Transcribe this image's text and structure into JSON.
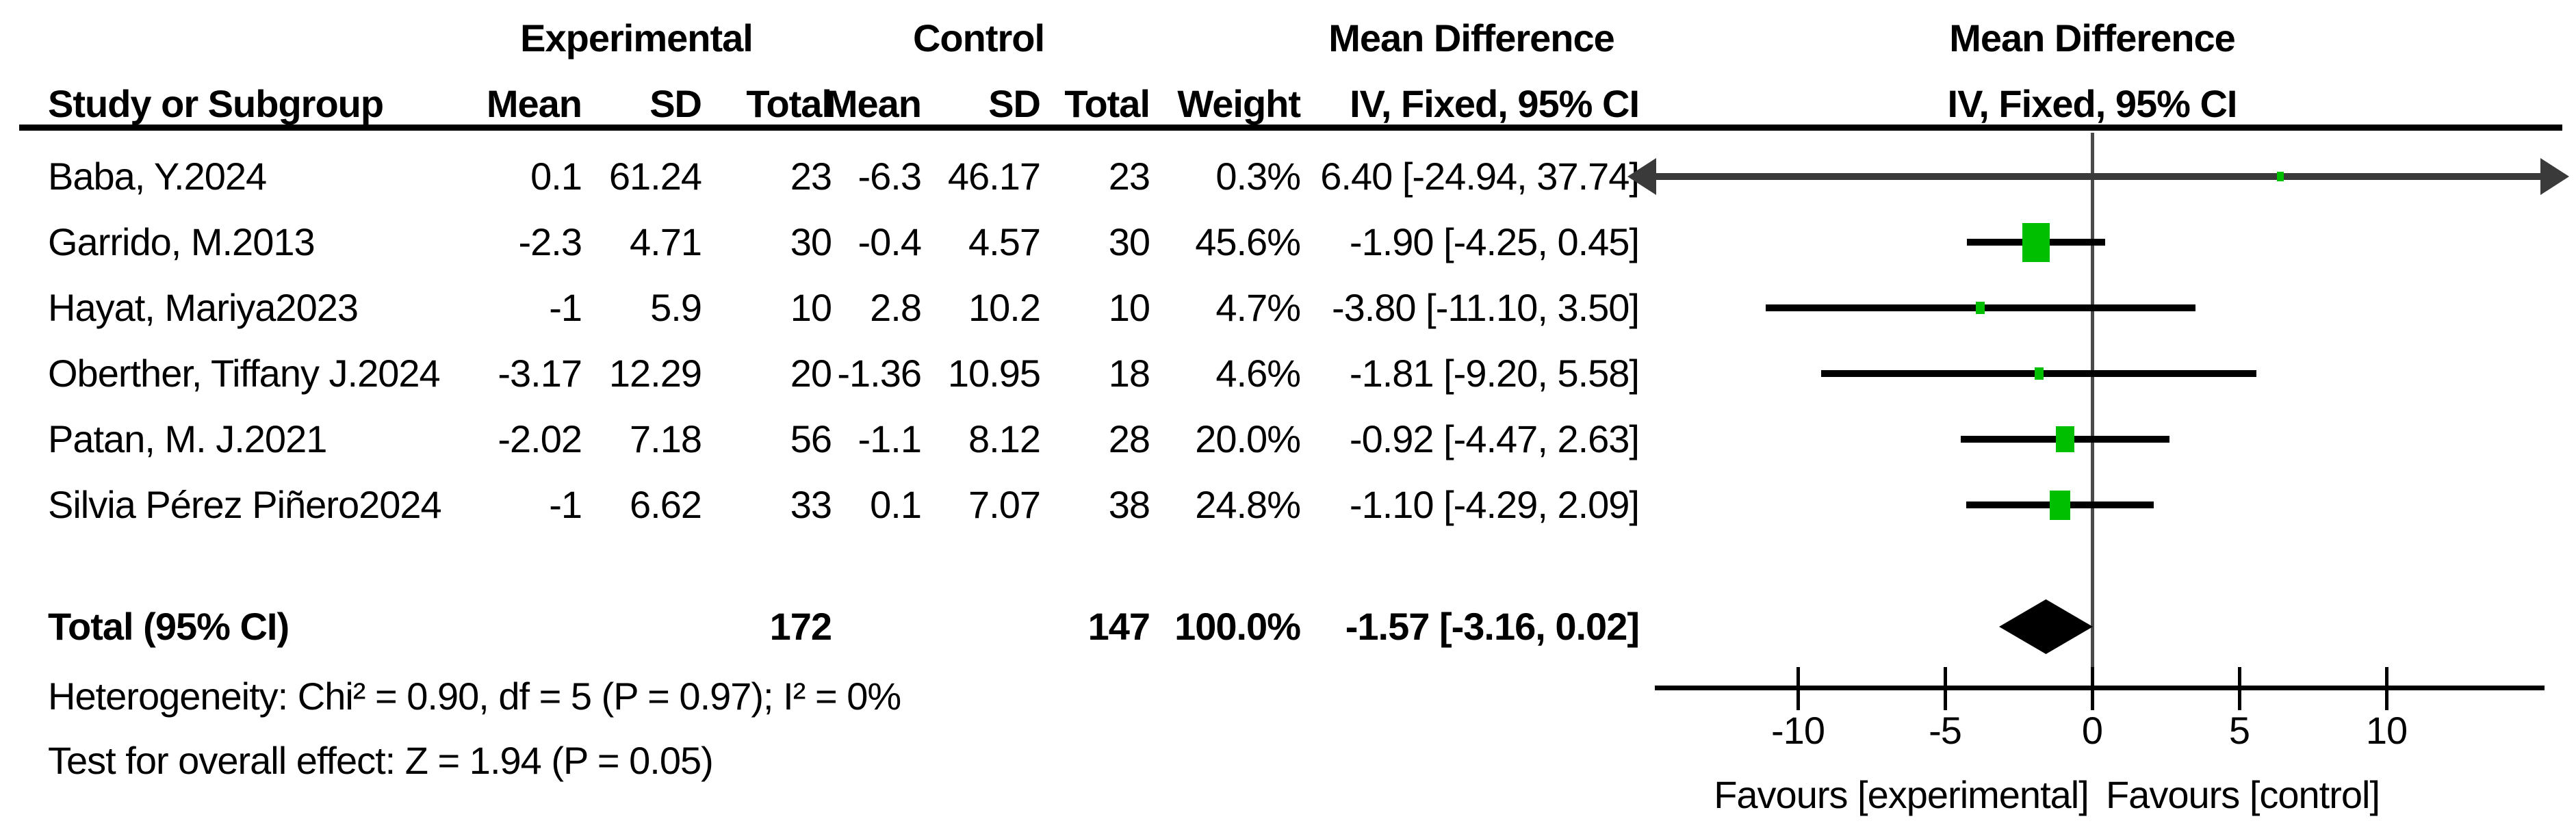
{
  "headers": {
    "group_experimental": "Experimental",
    "group_control": "Control",
    "group_md_table": "Mean Difference",
    "group_md_plot": "Mean Difference",
    "study": "Study or Subgroup",
    "mean_exp": "Mean",
    "sd_exp": "SD",
    "total_exp": "Total",
    "mean_ctrl": "Mean",
    "sd_ctrl": "SD",
    "total_ctrl": "Total",
    "weight": "Weight",
    "ci_table": "IV, Fixed, 95% CI",
    "ci_plot": "IV, Fixed, 95% CI"
  },
  "chart_data": {
    "type": "forest",
    "effect_measure": "Mean Difference",
    "model": "IV, Fixed, 95% CI",
    "marker_color": "#00BE00",
    "diamond_color": "#000000",
    "x_axis": {
      "ticks": [
        -10,
        -5,
        0,
        5,
        10
      ],
      "display_min": -14.8,
      "display_max": 15.2
    },
    "favours_left": "Favours [experimental]",
    "favours_right": "Favours [control]",
    "studies": [
      {
        "name": "Baba, Y.2024",
        "exp": {
          "mean": "0.1",
          "sd": "61.24",
          "total": "23"
        },
        "ctrl": {
          "mean": "-6.3",
          "sd": "46.17",
          "total": "23"
        },
        "weight": "0.3%",
        "weight_pct": 0.3,
        "md": 6.4,
        "ci_low": -24.94,
        "ci_high": 37.74,
        "ci_label": "6.40 [-24.94, 37.74]"
      },
      {
        "name": "Garrido, M.2013",
        "exp": {
          "mean": "-2.3",
          "sd": "4.71",
          "total": "30"
        },
        "ctrl": {
          "mean": "-0.4",
          "sd": "4.57",
          "total": "30"
        },
        "weight": "45.6%",
        "weight_pct": 45.6,
        "md": -1.9,
        "ci_low": -4.25,
        "ci_high": 0.45,
        "ci_label": "-1.90 [-4.25, 0.45]"
      },
      {
        "name": "Hayat, Mariya2023",
        "exp": {
          "mean": "-1",
          "sd": "5.9",
          "total": "10"
        },
        "ctrl": {
          "mean": "2.8",
          "sd": "10.2",
          "total": "10"
        },
        "weight": "4.7%",
        "weight_pct": 4.7,
        "md": -3.8,
        "ci_low": -11.1,
        "ci_high": 3.5,
        "ci_label": "-3.80 [-11.10, 3.50]"
      },
      {
        "name": "Oberther, Tiffany J.2024",
        "exp": {
          "mean": "-3.17",
          "sd": "12.29",
          "total": "20"
        },
        "ctrl": {
          "mean": "-1.36",
          "sd": "10.95",
          "total": "18"
        },
        "weight": "4.6%",
        "weight_pct": 4.6,
        "md": -1.81,
        "ci_low": -9.2,
        "ci_high": 5.58,
        "ci_label": "-1.81 [-9.20, 5.58]"
      },
      {
        "name": "Patan, M. J.2021",
        "exp": {
          "mean": "-2.02",
          "sd": "7.18",
          "total": "56"
        },
        "ctrl": {
          "mean": "-1.1",
          "sd": "8.12",
          "total": "28"
        },
        "weight": "20.0%",
        "weight_pct": 20.0,
        "md": -0.92,
        "ci_low": -4.47,
        "ci_high": 2.63,
        "ci_label": "-0.92 [-4.47, 2.63]"
      },
      {
        "name": "Silvia Pérez Piñero2024",
        "exp": {
          "mean": "-1",
          "sd": "6.62",
          "total": "33"
        },
        "ctrl": {
          "mean": "0.1",
          "sd": "7.07",
          "total": "38"
        },
        "weight": "24.8%",
        "weight_pct": 24.8,
        "md": -1.1,
        "ci_low": -4.29,
        "ci_high": 2.09,
        "ci_label": "-1.10 [-4.29, 2.09]"
      }
    ],
    "total": {
      "label": "Total (95% CI)",
      "exp_total": "172",
      "ctrl_total": "147",
      "weight": "100.0%",
      "md": -1.57,
      "ci_low": -3.16,
      "ci_high": 0.02,
      "ci_label": "-1.57 [-3.16, 0.02]"
    },
    "heterogeneity": "Heterogeneity: Chi² = 0.90, df = 5 (P = 0.97); I² = 0%",
    "overall_effect": "Test for overall effect: Z = 1.94 (P = 0.05)"
  }
}
